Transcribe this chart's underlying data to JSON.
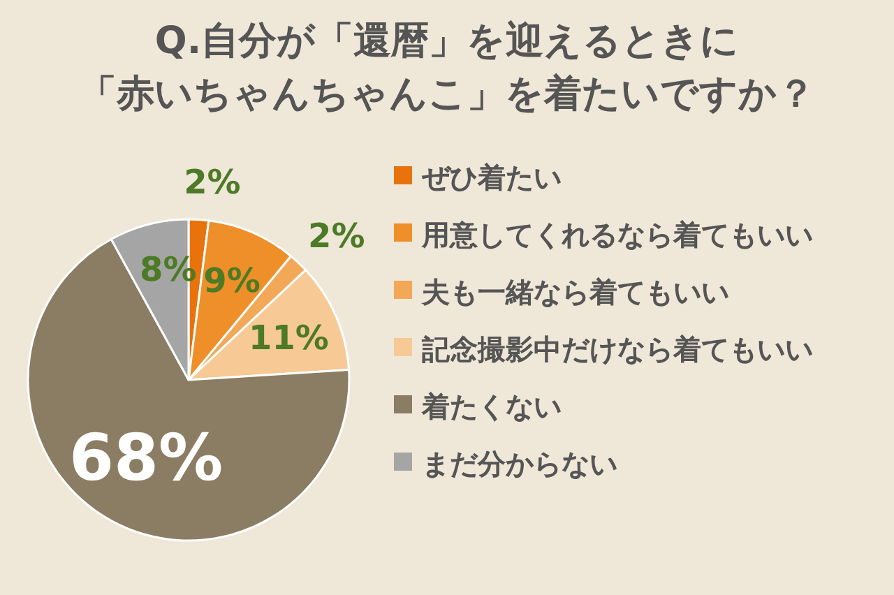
{
  "chart_data": {
    "type": "pie",
    "title": "Q.自分が「還暦」を迎えるときに",
    "subtitle": "「赤いちゃんちゃんこ」を着たいですか？",
    "categories": [
      "ぜひ着たい",
      "用意してくれるなら着てもいい",
      "夫も一緒なら着てもいい",
      "記念撮影中だけなら着てもいい",
      "着たくない",
      "まだ分からない"
    ],
    "values": [
      2,
      9,
      2,
      11,
      68,
      8
    ],
    "colors": [
      "#e8730c",
      "#ee8f2a",
      "#f2a857",
      "#f7c995",
      "#8b7d63",
      "#a5a5a5"
    ],
    "value_labels": [
      "2%",
      "9%",
      "2%",
      "11%",
      "68%",
      "8%"
    ],
    "legend": "right"
  }
}
